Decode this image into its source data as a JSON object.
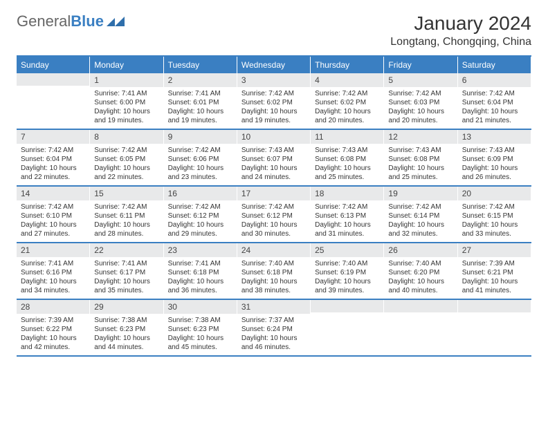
{
  "logo": {
    "text_a": "General",
    "text_b": "Blue",
    "mark_color": "#2f6fab"
  },
  "title": "January 2024",
  "location": "Longtang, Chongqing, China",
  "colors": {
    "header_bg": "#3a7fc2",
    "header_text": "#ffffff",
    "daynum_bg": "#e8e9ea",
    "border": "#3a7fc2",
    "text": "#333333"
  },
  "day_headers": [
    "Sunday",
    "Monday",
    "Tuesday",
    "Wednesday",
    "Thursday",
    "Friday",
    "Saturday"
  ],
  "weeks": [
    [
      {
        "num": "",
        "lines": []
      },
      {
        "num": "1",
        "lines": [
          "Sunrise: 7:41 AM",
          "Sunset: 6:00 PM",
          "Daylight: 10 hours",
          "and 19 minutes."
        ]
      },
      {
        "num": "2",
        "lines": [
          "Sunrise: 7:41 AM",
          "Sunset: 6:01 PM",
          "Daylight: 10 hours",
          "and 19 minutes."
        ]
      },
      {
        "num": "3",
        "lines": [
          "Sunrise: 7:42 AM",
          "Sunset: 6:02 PM",
          "Daylight: 10 hours",
          "and 19 minutes."
        ]
      },
      {
        "num": "4",
        "lines": [
          "Sunrise: 7:42 AM",
          "Sunset: 6:02 PM",
          "Daylight: 10 hours",
          "and 20 minutes."
        ]
      },
      {
        "num": "5",
        "lines": [
          "Sunrise: 7:42 AM",
          "Sunset: 6:03 PM",
          "Daylight: 10 hours",
          "and 20 minutes."
        ]
      },
      {
        "num": "6",
        "lines": [
          "Sunrise: 7:42 AM",
          "Sunset: 6:04 PM",
          "Daylight: 10 hours",
          "and 21 minutes."
        ]
      }
    ],
    [
      {
        "num": "7",
        "lines": [
          "Sunrise: 7:42 AM",
          "Sunset: 6:04 PM",
          "Daylight: 10 hours",
          "and 22 minutes."
        ]
      },
      {
        "num": "8",
        "lines": [
          "Sunrise: 7:42 AM",
          "Sunset: 6:05 PM",
          "Daylight: 10 hours",
          "and 22 minutes."
        ]
      },
      {
        "num": "9",
        "lines": [
          "Sunrise: 7:42 AM",
          "Sunset: 6:06 PM",
          "Daylight: 10 hours",
          "and 23 minutes."
        ]
      },
      {
        "num": "10",
        "lines": [
          "Sunrise: 7:43 AM",
          "Sunset: 6:07 PM",
          "Daylight: 10 hours",
          "and 24 minutes."
        ]
      },
      {
        "num": "11",
        "lines": [
          "Sunrise: 7:43 AM",
          "Sunset: 6:08 PM",
          "Daylight: 10 hours",
          "and 25 minutes."
        ]
      },
      {
        "num": "12",
        "lines": [
          "Sunrise: 7:43 AM",
          "Sunset: 6:08 PM",
          "Daylight: 10 hours",
          "and 25 minutes."
        ]
      },
      {
        "num": "13",
        "lines": [
          "Sunrise: 7:43 AM",
          "Sunset: 6:09 PM",
          "Daylight: 10 hours",
          "and 26 minutes."
        ]
      }
    ],
    [
      {
        "num": "14",
        "lines": [
          "Sunrise: 7:42 AM",
          "Sunset: 6:10 PM",
          "Daylight: 10 hours",
          "and 27 minutes."
        ]
      },
      {
        "num": "15",
        "lines": [
          "Sunrise: 7:42 AM",
          "Sunset: 6:11 PM",
          "Daylight: 10 hours",
          "and 28 minutes."
        ]
      },
      {
        "num": "16",
        "lines": [
          "Sunrise: 7:42 AM",
          "Sunset: 6:12 PM",
          "Daylight: 10 hours",
          "and 29 minutes."
        ]
      },
      {
        "num": "17",
        "lines": [
          "Sunrise: 7:42 AM",
          "Sunset: 6:12 PM",
          "Daylight: 10 hours",
          "and 30 minutes."
        ]
      },
      {
        "num": "18",
        "lines": [
          "Sunrise: 7:42 AM",
          "Sunset: 6:13 PM",
          "Daylight: 10 hours",
          "and 31 minutes."
        ]
      },
      {
        "num": "19",
        "lines": [
          "Sunrise: 7:42 AM",
          "Sunset: 6:14 PM",
          "Daylight: 10 hours",
          "and 32 minutes."
        ]
      },
      {
        "num": "20",
        "lines": [
          "Sunrise: 7:42 AM",
          "Sunset: 6:15 PM",
          "Daylight: 10 hours",
          "and 33 minutes."
        ]
      }
    ],
    [
      {
        "num": "21",
        "lines": [
          "Sunrise: 7:41 AM",
          "Sunset: 6:16 PM",
          "Daylight: 10 hours",
          "and 34 minutes."
        ]
      },
      {
        "num": "22",
        "lines": [
          "Sunrise: 7:41 AM",
          "Sunset: 6:17 PM",
          "Daylight: 10 hours",
          "and 35 minutes."
        ]
      },
      {
        "num": "23",
        "lines": [
          "Sunrise: 7:41 AM",
          "Sunset: 6:18 PM",
          "Daylight: 10 hours",
          "and 36 minutes."
        ]
      },
      {
        "num": "24",
        "lines": [
          "Sunrise: 7:40 AM",
          "Sunset: 6:18 PM",
          "Daylight: 10 hours",
          "and 38 minutes."
        ]
      },
      {
        "num": "25",
        "lines": [
          "Sunrise: 7:40 AM",
          "Sunset: 6:19 PM",
          "Daylight: 10 hours",
          "and 39 minutes."
        ]
      },
      {
        "num": "26",
        "lines": [
          "Sunrise: 7:40 AM",
          "Sunset: 6:20 PM",
          "Daylight: 10 hours",
          "and 40 minutes."
        ]
      },
      {
        "num": "27",
        "lines": [
          "Sunrise: 7:39 AM",
          "Sunset: 6:21 PM",
          "Daylight: 10 hours",
          "and 41 minutes."
        ]
      }
    ],
    [
      {
        "num": "28",
        "lines": [
          "Sunrise: 7:39 AM",
          "Sunset: 6:22 PM",
          "Daylight: 10 hours",
          "and 42 minutes."
        ]
      },
      {
        "num": "29",
        "lines": [
          "Sunrise: 7:38 AM",
          "Sunset: 6:23 PM",
          "Daylight: 10 hours",
          "and 44 minutes."
        ]
      },
      {
        "num": "30",
        "lines": [
          "Sunrise: 7:38 AM",
          "Sunset: 6:23 PM",
          "Daylight: 10 hours",
          "and 45 minutes."
        ]
      },
      {
        "num": "31",
        "lines": [
          "Sunrise: 7:37 AM",
          "Sunset: 6:24 PM",
          "Daylight: 10 hours",
          "and 46 minutes."
        ]
      },
      {
        "num": "",
        "lines": []
      },
      {
        "num": "",
        "lines": []
      },
      {
        "num": "",
        "lines": []
      }
    ]
  ]
}
